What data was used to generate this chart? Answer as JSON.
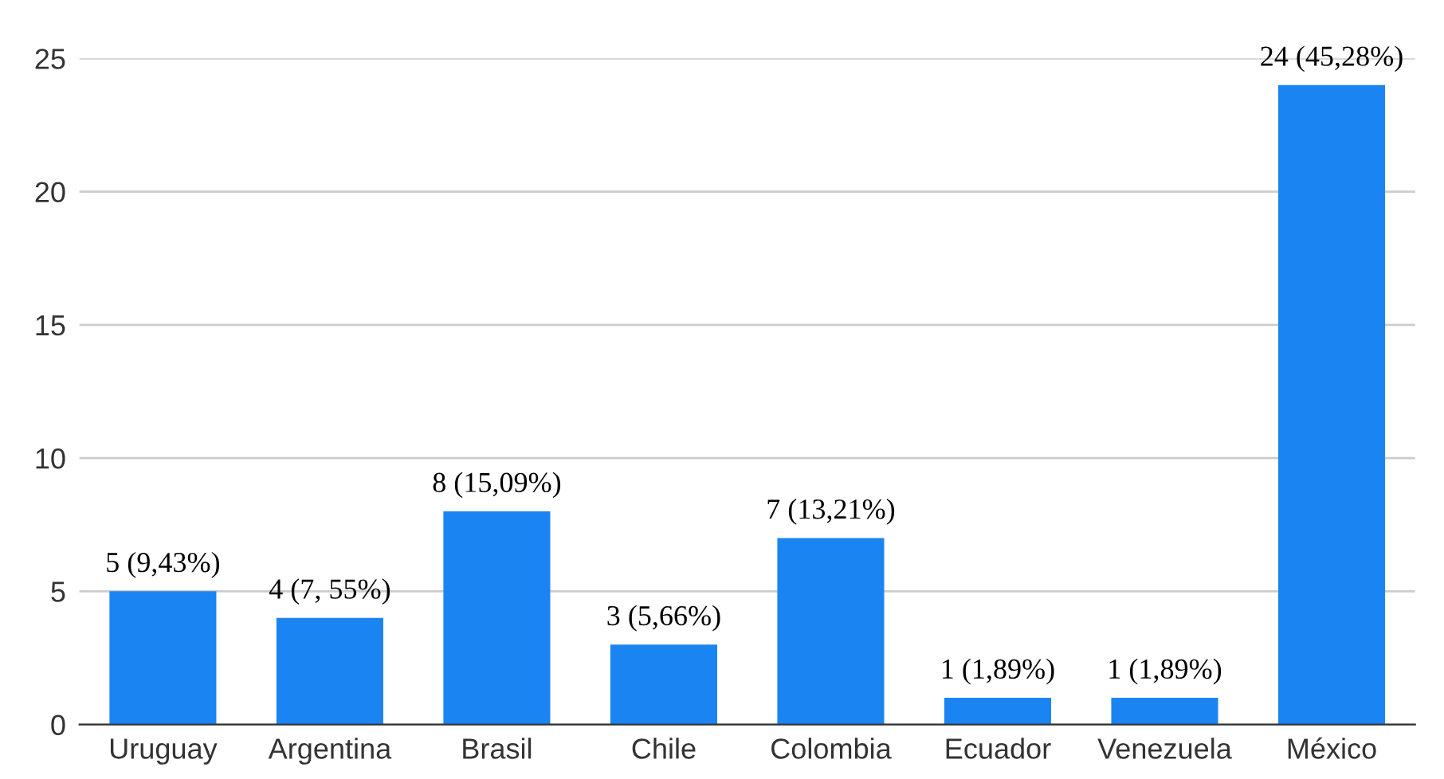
{
  "chart_data": {
    "type": "bar",
    "categories": [
      "Uruguay",
      "Argentina",
      "Brasil",
      "Chile",
      "Colombia",
      "Ecuador",
      "Venezuela",
      "México"
    ],
    "values": [
      5,
      4,
      8,
      3,
      7,
      1,
      1,
      24
    ],
    "value_labels": [
      "5 (9,43%)",
      "4 (7, 55%)",
      "8 (15,09%)",
      "3 (5,66%)",
      "7 (13,21%)",
      "1 (1,89%)",
      "1 (1,89%)",
      "24 (45,28%)"
    ],
    "color": "#1a85f2",
    "ylim": [
      0,
      25
    ],
    "yticks": [
      0,
      5,
      10,
      15,
      20,
      25
    ],
    "grid": "y",
    "legend": false
  }
}
